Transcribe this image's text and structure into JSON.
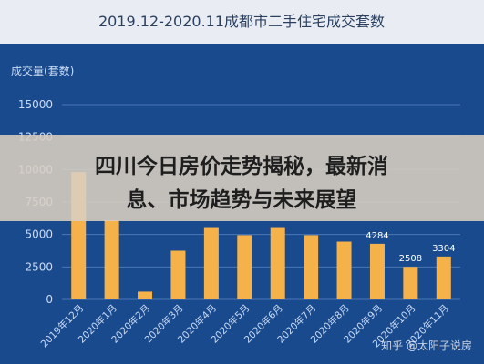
{
  "chart_data": {
    "type": "bar",
    "title": "2019.12-2020.11成都市二手住宅成交套数",
    "ylabel": "成交量(套数)",
    "xlabel": "",
    "ylim": [
      0,
      15000
    ],
    "yticks": [
      0,
      2500,
      5000,
      7500,
      10000,
      12500,
      15000
    ],
    "grid": true,
    "categories": [
      "2019年12月",
      "2020年1月",
      "2020年2月",
      "2020年3月",
      "2020年4月",
      "2020年5月",
      "2020年6月",
      "2020年7月",
      "2020年8月",
      "2020年9月",
      "2020年10月",
      "2020年11月"
    ],
    "values": [
      9800,
      6100,
      600,
      3750,
      5500,
      4950,
      5500,
      4950,
      4450,
      4284,
      2508,
      3304
    ],
    "data_labels": [
      null,
      null,
      null,
      null,
      null,
      null,
      null,
      null,
      null,
      "4284",
      "2508",
      "3304"
    ],
    "colors": {
      "background": "#1a4a8e",
      "title_band": "#e9edf3",
      "title_text": "#2a3f5f",
      "bar": "#f6b24a",
      "axis_text": "#c9dbf5",
      "grid": "#4a77b5",
      "label_text": "#ffffff"
    }
  },
  "banner": {
    "line1": "四川今日房价走势揭秘，最新消",
    "line2": "息、市场趋势与未来展望",
    "background": "#d9cfc1",
    "text_color": "#1e1e1e"
  },
  "watermark": {
    "text": "知乎 @太阳子说房"
  }
}
